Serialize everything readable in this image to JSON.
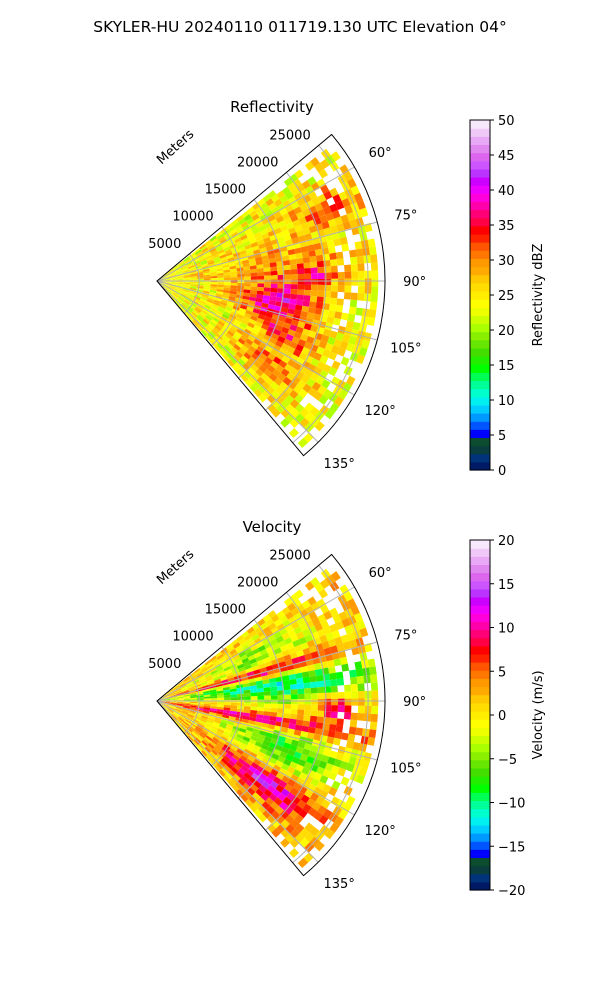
{
  "figure": {
    "suptitle": "SKYLER-HU  20240110  011719.130 UTC Elevation 04°"
  },
  "chart_data": [
    {
      "type": "heatmap",
      "projection": "polar-sector",
      "title": "Reflectivity",
      "radial_label": "Meters",
      "radial_ticks": [
        "5000",
        "10000",
        "15000",
        "20000",
        "25000"
      ],
      "radial_tick_values": [
        5000,
        10000,
        15000,
        20000,
        25000
      ],
      "rlim": [
        0,
        27000
      ],
      "angle_ticks": [
        "60°",
        "75°",
        "90°",
        "105°",
        "120°",
        "135°"
      ],
      "angle_tick_values": [
        60,
        75,
        90,
        105,
        120,
        135
      ],
      "theta_range": [
        50,
        140
      ],
      "grid": true,
      "colorbar": {
        "label": "Reflectivity dBZ",
        "min": 0,
        "max": 50,
        "ticks": [
          "0",
          "5",
          "10",
          "15",
          "20",
          "25",
          "30",
          "35",
          "40",
          "45",
          "50"
        ],
        "tick_values": [
          0,
          5,
          10,
          15,
          20,
          25,
          30,
          35,
          40,
          45,
          50
        ],
        "colors": [
          "#001a66",
          "#00337a",
          "#0a3d3d",
          "#0b4d2e",
          "#0000ff",
          "#0055ff",
          "#0099ff",
          "#00ccff",
          "#00f0f0",
          "#00ffcc",
          "#00ff99",
          "#00ff55",
          "#00ff00",
          "#22ee00",
          "#44dd00",
          "#66e600",
          "#88f000",
          "#aaff00",
          "#ccff00",
          "#eeff00",
          "#ffff00",
          "#ffee00",
          "#ffdd00",
          "#ffc800",
          "#ffaa00",
          "#ff9900",
          "#ff7700",
          "#ff5500",
          "#ff2200",
          "#ff0000",
          "#ff0044",
          "#ff0077",
          "#ff00aa",
          "#ff00dd",
          "#ee00ff",
          "#cc00ff",
          "#bb33ff",
          "#cc55ff",
          "#dd66ee",
          "#e088f0",
          "#e8a8f5",
          "#f0c8f8",
          "#f8e8fc"
        ]
      },
      "field_description": "mostly yellow 20-30 dBZ echo with red 35-40 dBZ bands and a magenta core near 95-100 degrees"
    },
    {
      "type": "heatmap",
      "projection": "polar-sector",
      "title": "Velocity",
      "radial_label": "Meters",
      "radial_ticks": [
        "5000",
        "10000",
        "15000",
        "20000",
        "25000"
      ],
      "radial_tick_values": [
        5000,
        10000,
        15000,
        20000,
        25000
      ],
      "rlim": [
        0,
        27000
      ],
      "angle_ticks": [
        "60°",
        "75°",
        "90°",
        "105°",
        "120°",
        "135°"
      ],
      "angle_tick_values": [
        60,
        75,
        90,
        105,
        120,
        135
      ],
      "theta_range": [
        50,
        140
      ],
      "grid": true,
      "colorbar": {
        "label": "Velocity (m/s)",
        "min": -20,
        "max": 20,
        "ticks": [
          "−20",
          "−15",
          "−10",
          "−5",
          "0",
          "5",
          "10",
          "15",
          "20"
        ],
        "tick_values": [
          -20,
          -15,
          -10,
          -5,
          0,
          5,
          10,
          15,
          20
        ],
        "colors": [
          "#001a66",
          "#00337a",
          "#0a3d3d",
          "#0b4d2e",
          "#0000ff",
          "#0055ff",
          "#0099ff",
          "#00ccff",
          "#00f0f0",
          "#00ffcc",
          "#00ff99",
          "#00ff55",
          "#00ff00",
          "#22ee00",
          "#44dd00",
          "#66e600",
          "#88f000",
          "#aaff00",
          "#ccff00",
          "#eeff00",
          "#ffff00",
          "#ffee00",
          "#ffdd00",
          "#ffc800",
          "#ffaa00",
          "#ff9900",
          "#ff7700",
          "#ff5500",
          "#ff2200",
          "#ff0000",
          "#ff0044",
          "#ff0077",
          "#ff00aa",
          "#ff00dd",
          "#ee00ff",
          "#cc00ff",
          "#bb33ff",
          "#cc55ff",
          "#dd66ee",
          "#e088f0",
          "#e8a8f5",
          "#f0c8f8",
          "#f8e8fc"
        ]
      },
      "field_description": "inbound green/cyan (-5 to -12 m/s) near 80-95 degrees, outbound magenta/red (10-15 m/s) bands, yellow near zero elsewhere"
    }
  ]
}
